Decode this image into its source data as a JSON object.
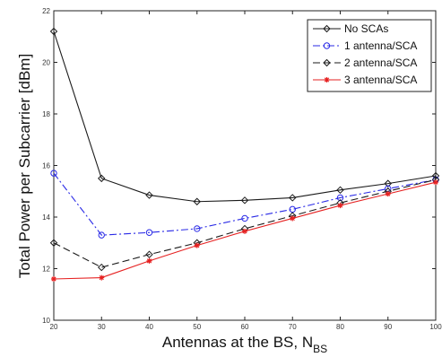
{
  "chart_data": {
    "type": "line",
    "xlabel": "Antennas at the BS, N",
    "xlabel_sub": "BS",
    "ylabel": "Total Power per Subcarrier [dBm]",
    "xlim": [
      20,
      100
    ],
    "ylim": [
      10,
      22
    ],
    "x_ticks": [
      20,
      30,
      40,
      50,
      60,
      70,
      80,
      90,
      100
    ],
    "y_ticks": [
      10,
      12,
      14,
      16,
      18,
      20,
      22
    ],
    "grid": false,
    "legend_position": "top-right",
    "x": [
      20,
      30,
      40,
      50,
      60,
      70,
      80,
      90,
      100
    ],
    "series": [
      {
        "name": "No SCAs",
        "color": "#1a1a1a",
        "dash": "solid",
        "marker": "diamond",
        "values": [
          21.2,
          15.5,
          14.85,
          14.6,
          14.65,
          14.75,
          15.05,
          15.3,
          15.6
        ]
      },
      {
        "name": "1 antenna/SCA",
        "color": "#2929e6",
        "dash": "dashdot",
        "marker": "circle",
        "values": [
          15.7,
          13.3,
          13.4,
          13.55,
          13.95,
          14.3,
          14.75,
          15.1,
          15.45
        ]
      },
      {
        "name": "2 antenna/SCA",
        "color": "#1a1a1a",
        "dash": "dashed",
        "marker": "diamond",
        "values": [
          13.0,
          12.05,
          12.55,
          13.0,
          13.55,
          14.05,
          14.55,
          15.0,
          15.45
        ]
      },
      {
        "name": "3 antenna/SCA",
        "color": "#e62222",
        "dash": "solid",
        "marker": "star",
        "values": [
          11.6,
          11.65,
          12.3,
          12.9,
          13.45,
          13.95,
          14.45,
          14.9,
          15.35
        ]
      }
    ]
  }
}
